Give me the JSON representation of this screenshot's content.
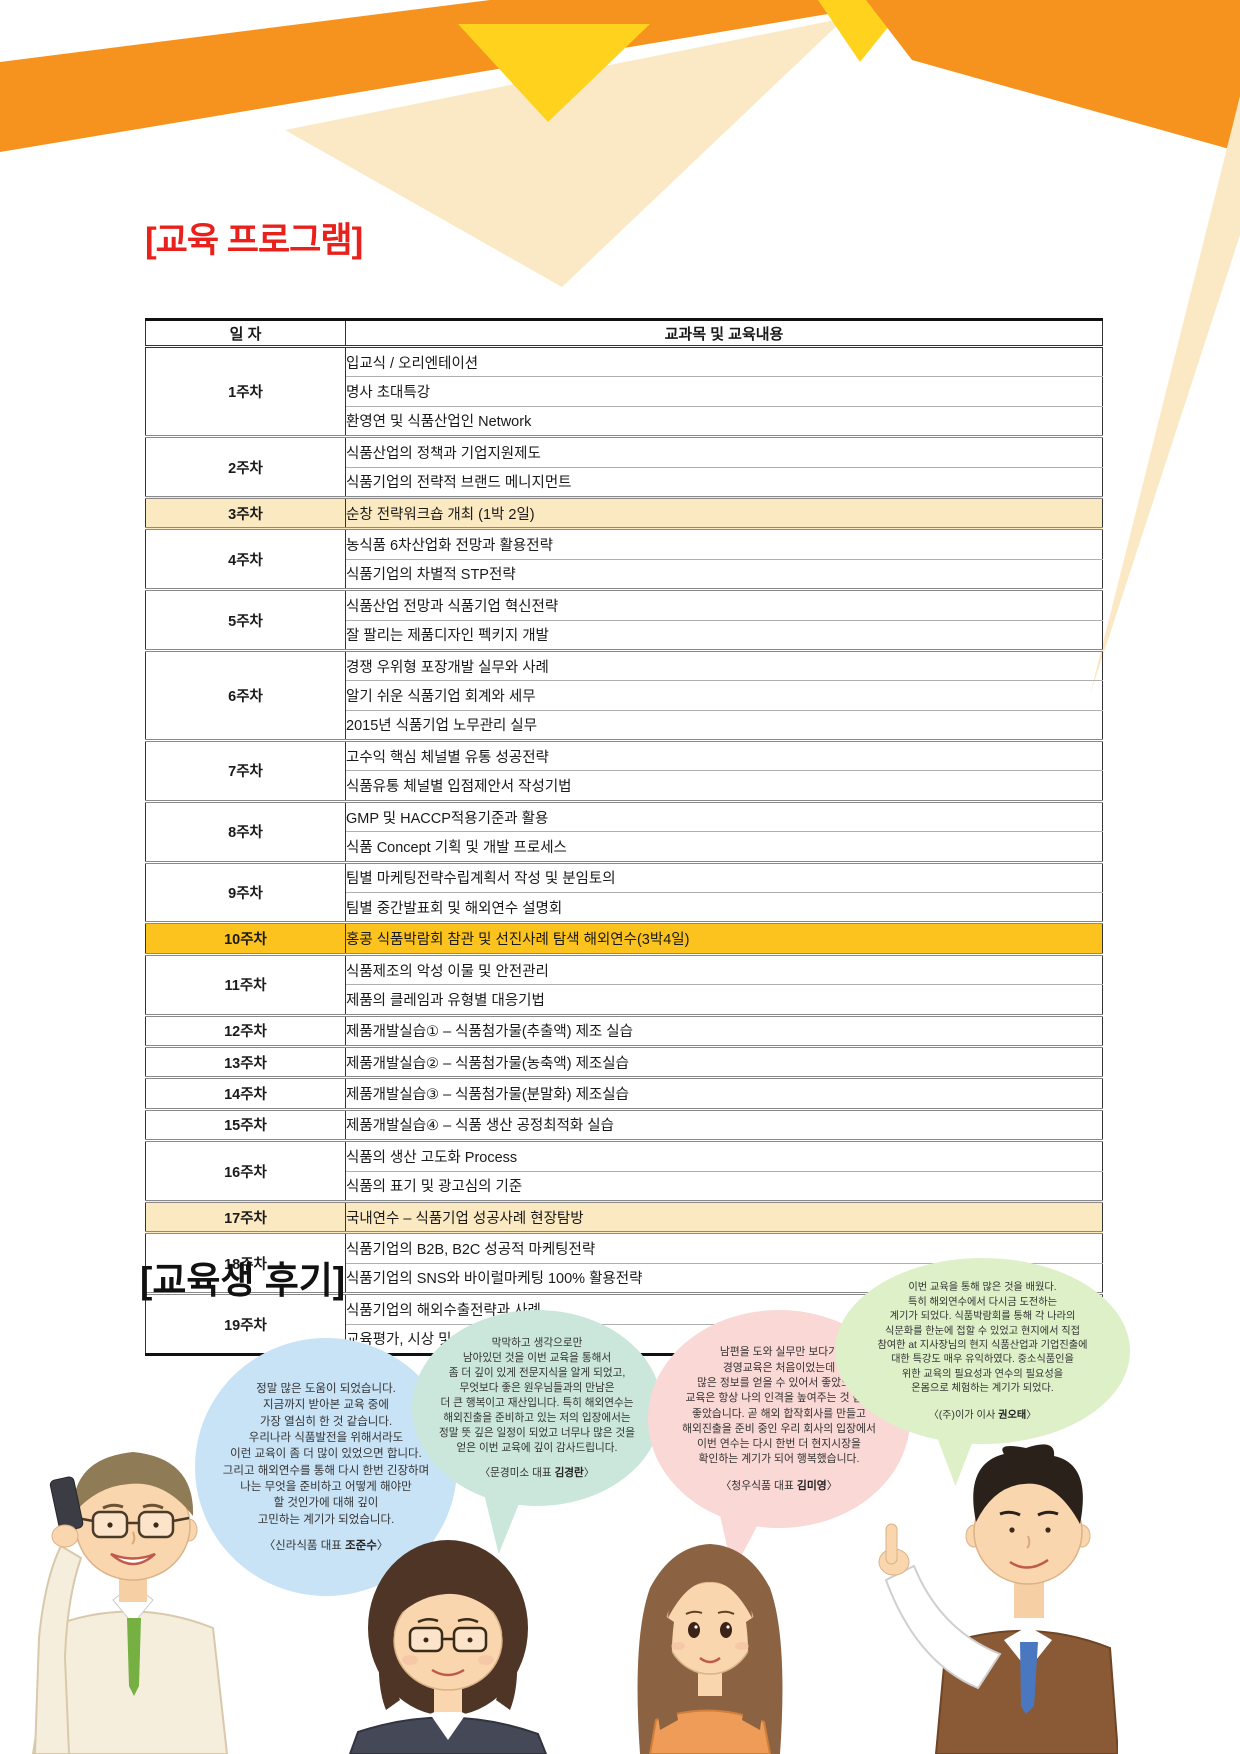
{
  "titles": {
    "program": "[교육 프로그램]",
    "reviews": "[교육생 후기]"
  },
  "table": {
    "headers": [
      "일 자",
      "교과목 및 교육내용"
    ],
    "weeks": [
      {
        "week": "1주차",
        "items": [
          "입교식 / 오리엔테이션",
          "명사 초대특강",
          "환영연 및 식품산업인 Network"
        ]
      },
      {
        "week": "2주차",
        "items": [
          "식품산업의 정책과 기업지원제도",
          "식품기업의 전략적 브랜드 메니지먼트"
        ]
      },
      {
        "week": "3주차",
        "items": [
          "순창 전략워크숍 개최 (1박 2일)"
        ],
        "highlight": "cream"
      },
      {
        "week": "4주차",
        "items": [
          "농식품 6차산업화 전망과 활용전략",
          "식품기업의 차별적 STP전략"
        ]
      },
      {
        "week": "5주차",
        "items": [
          "식품산업 전망과 식품기업 혁신전략",
          "잘 팔리는 제품디자인 펙키지 개발"
        ]
      },
      {
        "week": "6주차",
        "items": [
          "경쟁 우위형 포장개발 실무와 사례",
          "알기 쉬운 식품기업 회계와 세무",
          "2015년 식품기업 노무관리 실무"
        ]
      },
      {
        "week": "7주차",
        "items": [
          "고수익 핵심 체널별 유통 성공전략",
          "식품유통 체널별 입점제안서 작성기법"
        ]
      },
      {
        "week": "8주차",
        "items": [
          "GMP 및 HACCP적용기준과 활용",
          "식품 Concept 기획 및 개발 프로세스"
        ]
      },
      {
        "week": "9주차",
        "items": [
          "팀별 마케팅전략수립계획서 작성 및 분임토의",
          "팀별 중간발표회 및 해외연수 설명회"
        ]
      },
      {
        "week": "10주차",
        "items": [
          "홍콩 식품박람회 참관 및 선진사례 탐색 해외연수(3박4일)"
        ],
        "highlight": "gold"
      },
      {
        "week": "11주차",
        "items": [
          "식품제조의 악성 이물 및 안전관리",
          "제품의 클레임과 유형별 대응기법"
        ]
      },
      {
        "week": "12주차",
        "items": [
          "제품개발실습① – 식품첨가물(추출액) 제조 실습"
        ]
      },
      {
        "week": "13주차",
        "items": [
          "제품개발실습② – 식품첨가물(농축액) 제조실습"
        ]
      },
      {
        "week": "14주차",
        "items": [
          "제품개발실습③ – 식품첨가물(분말화) 제조실습"
        ]
      },
      {
        "week": "15주차",
        "items": [
          "제품개발실습④ – 식품 생산 공정최적화 실습"
        ]
      },
      {
        "week": "16주차",
        "items": [
          "식품의 생산 고도화 Process",
          "식품의 표기 및 광고심의 기준"
        ]
      },
      {
        "week": "17주차",
        "items": [
          "국내연수 – 식품기업 성공사례 현장탐방"
        ],
        "highlight": "cream"
      },
      {
        "week": "18주차",
        "items": [
          "식품기업의 B2B, B2C 성공적 마케팅전략",
          "식품기업의 SNS와 바이럴마케팅 100% 활용전략"
        ]
      },
      {
        "week": "19주차",
        "items": [
          "식품기업의 해외수출전략과 사례",
          "교육평가, 시상 및 수료식"
        ]
      }
    ]
  },
  "reviews": [
    {
      "text": "정말 많은 도움이 되었습니다.\n지금까지 받아본 교육 중에\n가장 열심히 한 것 같습니다.\n우리나라 식품발전을 위해서라도\n이런 교육이 좀 더 많이 있었으면 합니다.\n그리고 해외연수를 통해 다시 한번 긴장하며\n나는 무엇을 준비하고 어떻게 해야만\n할 것인가에 대해 깊이\n고민하는 계기가 되었습니다.",
      "attr_prefix": "〈신라식품 대표 ",
      "attr_name": "조준수",
      "attr_suffix": "〉",
      "color": "#c9e3f6"
    },
    {
      "text": "막막하고 생각으로만\n남아있던 것을 이번 교육을 통해서\n좀 더 깊이 있게 전문지식을 알게 되었고,\n무엇보다 좋은 원우님들과의 만남은\n더 큰 행복이고 재산입니다. 특히 해외연수는\n해외진출을 준비하고 있는 저의 입장에서는\n정말 뜻 깊은 일정이 되었고 너무나 많은 것을\n얻은 이번 교육에 깊이 감사드립니다.",
      "attr_prefix": "〈문경미소 대표 ",
      "attr_name": "김경란",
      "attr_suffix": "〉",
      "color": "#cbe7db"
    },
    {
      "text": "남편을 도와 실무만 보다가\n경영교육은 처음이었는데\n많은 정보를 얻을 수 있어서 좋았으며\n교육은 항상 나의 인격을 높여주는 것 같아\n좋았습니다. 곧 해외 합작회사를 만들고\n해외진출을 준비 중인 우리 회사의 입장에서\n이번 연수는 다시 한번 더 현지시장을\n확인하는 계기가 되어 행복했습니다.",
      "attr_prefix": "〈청우식품 대표 ",
      "attr_name": "김미영",
      "attr_suffix": "〉",
      "color": "#f9d8d5"
    },
    {
      "text": "이번 교육을 통해 많은 것을 배웠다.\n특히 해외연수에서 다시금 도전하는\n계기가 되었다. 식품박람회를 통해 각 나라의\n식문화를 한눈에 접할 수 있었고 현지에서 직접\n참여한 at 지사장님의 현지 식품산업과 기업진출에\n대한 특강도 매우 유익하였다. 중소식품인을\n위한 교육의 필요성과 연수의 필요성을\n온몸으로 체험하는 계기가 되었다.",
      "attr_prefix": "〈(주)이가 이사 ",
      "attr_name": "권오태",
      "attr_suffix": "〉",
      "color": "#def0c8"
    }
  ],
  "illustrations": [
    {
      "name": "male-student-with-phone"
    },
    {
      "name": "female-student-bob-glasses"
    },
    {
      "name": "female-student-long-hair"
    },
    {
      "name": "male-student-pointing"
    }
  ],
  "colors": {
    "title_red": "#e8211c",
    "deco_orange": "#f6921e",
    "deco_yellow": "#ffd21e",
    "deco_cream": "#fbe8c4",
    "highlight_cream_row": "#fbe9c1",
    "highlight_gold_row": "#fcc31e"
  }
}
